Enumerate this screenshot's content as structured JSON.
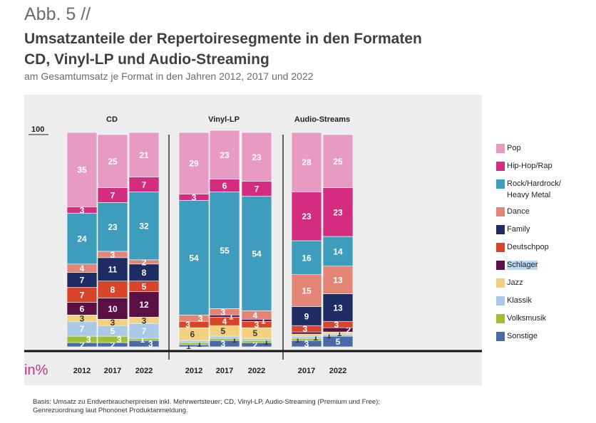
{
  "figure": {
    "number": "Abb. 5 //",
    "title_line1": "Umsatzanteile der Repertoiresegmente in den Formaten",
    "title_line2": "CD, Vinyl-LP und Audio-Streaming",
    "subtitle": "am Gesamtumsatz je Format in den Jahren 2012, 2017 und 2022",
    "note_line1": "Basis: Umsatz zu Endverbraucherpreisen inkl. Mehrwertsteuer; CD, Vinyl-LP, Audio-Streaming (Premium und Free);",
    "note_line2": "Genrezuordnung laut Phononet Produktanmeldung."
  },
  "chart_data": {
    "type": "bar",
    "stacked": true,
    "ylim": [
      0,
      100
    ],
    "y_axis_label": "100",
    "y_unit": "in%",
    "colors": {
      "Pop": "#e79bc2",
      "Hip-Hop/Rap": "#d42d7f",
      "Rock/Hardrock/Heavy Metal": "#3e9cbd",
      "Dance": "#e38475",
      "Family": "#1d2c63",
      "Deutschpop": "#d9452b",
      "Schlager": "#5a1042",
      "Jazz": "#f2d07e",
      "Klassik": "#a9c9e6",
      "Volksmusik": "#9ec035",
      "Sonstige": "#4a6aa7"
    },
    "legend": [
      {
        "key": "Pop",
        "label": "Pop"
      },
      {
        "key": "Hip-Hop/Rap",
        "label": "Hip-Hop/Rap"
      },
      {
        "key": "Rock/Hardrock/Heavy Metal",
        "label": "Rock/Hardrock/",
        "label2": "Heavy Metal"
      },
      {
        "key": "Dance",
        "label": "Dance"
      },
      {
        "key": "Family",
        "label": "Family"
      },
      {
        "key": "Deutschpop",
        "label": "Deutschpop"
      },
      {
        "key": "Schlager",
        "label": "Schlager",
        "highlight": true
      },
      {
        "key": "Jazz",
        "label": "Jazz"
      },
      {
        "key": "Klassik",
        "label": "Klassik"
      },
      {
        "key": "Volksmusik",
        "label": "Volksmusik"
      },
      {
        "key": "Sonstige",
        "label": "Sonstige"
      }
    ],
    "groups": [
      {
        "name": "CD",
        "bars": [
          {
            "year": "2012",
            "segments": [
              {
                "s": "Sonstige",
                "v": 2,
                "label": "2"
              },
              {
                "s": "Volksmusik",
                "v": 3,
                "label": "3",
                "lx": 0.72
              },
              {
                "s": "Klassik",
                "v": 7,
                "label": "7"
              },
              {
                "s": "Jazz",
                "v": 3,
                "label": "3",
                "dark": true
              },
              {
                "s": "Schlager",
                "v": 6,
                "label": "6"
              },
              {
                "s": "Deutschpop",
                "v": 7,
                "label": "7"
              },
              {
                "s": "Family",
                "v": 7,
                "label": "7"
              },
              {
                "s": "Dance",
                "v": 4,
                "label": "4"
              },
              {
                "s": "Rock/Hardrock/Heavy Metal",
                "v": 24,
                "label": "24"
              },
              {
                "s": "Hip-Hop/Rap",
                "v": 3,
                "label": "3"
              },
              {
                "s": "Pop",
                "v": 35,
                "label": "35"
              }
            ]
          },
          {
            "year": "2017",
            "segments": [
              {
                "s": "Sonstige",
                "v": 2,
                "label": "2"
              },
              {
                "s": "Volksmusik",
                "v": 3,
                "label": "3",
                "lx": 0.72
              },
              {
                "s": "Klassik",
                "v": 5,
                "label": "5"
              },
              {
                "s": "Jazz",
                "v": 3,
                "label": "3",
                "dark": true
              },
              {
                "s": "Schlager",
                "v": 10,
                "label": "10"
              },
              {
                "s": "Deutschpop",
                "v": 8,
                "label": "8"
              },
              {
                "s": "Family",
                "v": 11,
                "label": "11"
              },
              {
                "s": "Dance",
                "v": 3,
                "label": "3"
              },
              {
                "s": "Rock/Hardrock/Heavy Metal",
                "v": 23,
                "label": "23"
              },
              {
                "s": "Hip-Hop/Rap",
                "v": 7,
                "label": "7"
              },
              {
                "s": "Pop",
                "v": 25,
                "label": "25"
              }
            ]
          },
          {
            "year": "2022",
            "segments": [
              {
                "s": "Sonstige",
                "v": 3,
                "label": "3",
                "lx": 0.72
              },
              {
                "s": "Volksmusik",
                "v": 1,
                "label": "1",
                "lx": 0.45
              },
              {
                "s": "Klassik",
                "v": 7,
                "label": "7"
              },
              {
                "s": "Jazz",
                "v": 3,
                "label": "3",
                "dark": true
              },
              {
                "s": "Schlager",
                "v": 12,
                "label": "12"
              },
              {
                "s": "Deutschpop",
                "v": 5,
                "label": "5"
              },
              {
                "s": "Family",
                "v": 8,
                "label": "8"
              },
              {
                "s": "Dance",
                "v": 2,
                "label": "2"
              },
              {
                "s": "Rock/Hardrock/Heavy Metal",
                "v": 32,
                "label": "32"
              },
              {
                "s": "Hip-Hop/Rap",
                "v": 7,
                "label": "7"
              },
              {
                "s": "Pop",
                "v": 21,
                "label": "21"
              }
            ]
          }
        ]
      },
      {
        "name": "Vinyl-LP",
        "bars": [
          {
            "year": "2012",
            "segments": [
              {
                "s": "Sonstige",
                "v": 1,
                "label": "1",
                "lx": 0.32,
                "dark": true
              },
              {
                "s": "Volksmusik",
                "v": 1,
                "label": "1",
                "lx": 0.68,
                "dark": true
              },
              {
                "s": "Klassik",
                "v": 1
              },
              {
                "s": "Jazz",
                "v": 6,
                "label": "6",
                "lx": 0.45,
                "dark": true
              },
              {
                "s": "Deutschpop",
                "v": 3,
                "label": "3",
                "lx": 0.3
              },
              {
                "s": "Dance",
                "v": 3,
                "label": "3",
                "lx": 0.72
              },
              {
                "s": "Rock/Hardrock/Heavy Metal",
                "v": 54,
                "label": "54"
              },
              {
                "s": "Hip-Hop/Rap",
                "v": 3,
                "label": "3"
              },
              {
                "s": "Pop",
                "v": 29,
                "label": "29"
              }
            ]
          },
          {
            "year": "2017",
            "segments": [
              {
                "s": "Sonstige",
                "v": 3,
                "label": "3",
                "lx": 0.45
              },
              {
                "s": "Volksmusik",
                "v": 1,
                "label": "1",
                "lx": 0.82,
                "dark": true
              },
              {
                "s": "Klassik",
                "v": 1
              },
              {
                "s": "Jazz",
                "v": 5,
                "label": "5",
                "lx": 0.45,
                "dark": true
              },
              {
                "s": "Deutschpop",
                "v": 4,
                "label": "4"
              },
              {
                "s": "Schlager",
                "v": 1,
                "label": "1",
                "lx": 0.72
              },
              {
                "s": "Dance",
                "v": 3,
                "label": "3",
                "lx": 0.45
              },
              {
                "s": "Rock/Hardrock/Heavy Metal",
                "v": 55,
                "label": "55"
              },
              {
                "s": "Hip-Hop/Rap",
                "v": 6,
                "label": "6"
              },
              {
                "s": "Pop",
                "v": 23,
                "label": "23"
              }
            ]
          },
          {
            "year": "2022",
            "segments": [
              {
                "s": "Sonstige",
                "v": 2,
                "label": "2",
                "lx": 0.45
              },
              {
                "s": "Volksmusik",
                "v": 1,
                "label": "1",
                "lx": 0.82,
                "dark": true
              },
              {
                "s": "Klassik",
                "v": 1
              },
              {
                "s": "Jazz",
                "v": 5,
                "label": "5",
                "lx": 0.45,
                "dark": true
              },
              {
                "s": "Deutschpop",
                "v": 3,
                "label": "3"
              },
              {
                "s": "Schlager",
                "v": 1,
                "label": "1",
                "lx": 0.72
              },
              {
                "s": "Dance",
                "v": 4,
                "label": "4",
                "lx": 0.45
              },
              {
                "s": "Rock/Hardrock/Heavy Metal",
                "v": 54,
                "label": "54"
              },
              {
                "s": "Hip-Hop/Rap",
                "v": 7,
                "label": "7"
              },
              {
                "s": "Pop",
                "v": 23,
                "label": "23"
              }
            ]
          }
        ]
      },
      {
        "name": "Audio-Streams",
        "bars": [
          {
            "year": "2017",
            "segments": [
              {
                "s": "Sonstige",
                "v": 3,
                "label": "3"
              },
              {
                "s": "Volksmusik",
                "v": 1,
                "label": "1",
                "lx": 0.2,
                "dark": true
              },
              {
                "s": "Klassik",
                "v": 1,
                "label": "1",
                "lx": 0.8,
                "dark": true
              },
              {
                "s": "Jazz",
                "v": 1
              },
              {
                "s": "Schlager",
                "v": 1
              },
              {
                "s": "Deutschpop",
                "v": 3,
                "label": "3",
                "lx": 0.45
              },
              {
                "s": "Family",
                "v": 9,
                "label": "9"
              },
              {
                "s": "Dance",
                "v": 15,
                "label": "15"
              },
              {
                "s": "Rock/Hardrock/Heavy Metal",
                "v": 16,
                "label": "16"
              },
              {
                "s": "Hip-Hop/Rap",
                "v": 23,
                "label": "23"
              },
              {
                "s": "Pop",
                "v": 28,
                "label": "28"
              }
            ]
          },
          {
            "year": "2022",
            "segments": [
              {
                "s": "Sonstige",
                "v": 5,
                "label": "5"
              },
              {
                "s": "Klassik",
                "v": 1,
                "label": "1",
                "lx": 0.2,
                "dark": true
              },
              {
                "s": "Jazz",
                "v": 1,
                "label": "1",
                "lx": 0.55,
                "dark": true
              },
              {
                "s": "Schlager",
                "v": 2,
                "label": "2",
                "lx": 0.85
              },
              {
                "s": "Deutschpop",
                "v": 3,
                "label": "3",
                "lx": 0.45
              },
              {
                "s": "Family",
                "v": 13,
                "label": "13"
              },
              {
                "s": "Dance",
                "v": 13,
                "label": "13"
              },
              {
                "s": "Rock/Hardrock/Heavy Metal",
                "v": 14,
                "label": "14"
              },
              {
                "s": "Hip-Hop/Rap",
                "v": 23,
                "label": "23"
              },
              {
                "s": "Pop",
                "v": 25,
                "label": "25"
              }
            ]
          }
        ]
      }
    ]
  }
}
